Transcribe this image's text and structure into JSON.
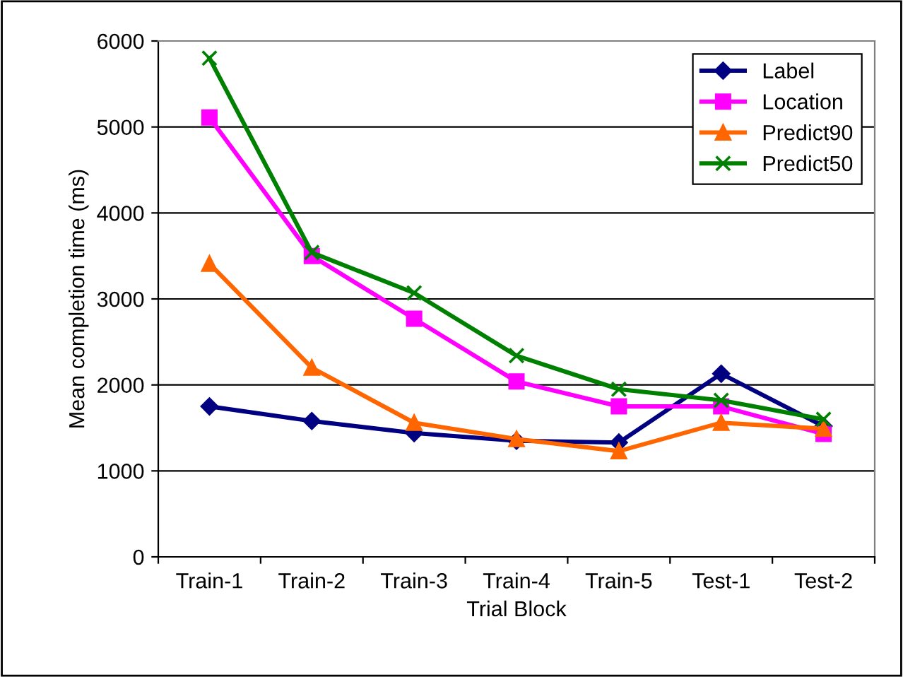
{
  "chart_data": {
    "type": "line",
    "xlabel": "Trial Block",
    "ylabel": "Mean completion time (ms)",
    "categories": [
      "Train-1",
      "Train-2",
      "Train-3",
      "Train-4",
      "Train-5",
      "Test-1",
      "Test-2"
    ],
    "series": [
      {
        "name": "Label",
        "color": "#000080",
        "marker": "diamond",
        "values": [
          1750,
          1580,
          1440,
          1350,
          1330,
          2130,
          1520
        ]
      },
      {
        "name": "Location",
        "color": "#ff00ff",
        "marker": "square",
        "values": [
          5110,
          3500,
          2770,
          2040,
          1750,
          1750,
          1430
        ]
      },
      {
        "name": "Predict90",
        "color": "#ff6600",
        "marker": "triangle",
        "values": [
          3410,
          2200,
          1560,
          1370,
          1230,
          1560,
          1490
        ]
      },
      {
        "name": "Predict50",
        "color": "#008000",
        "marker": "cross",
        "values": [
          5800,
          3540,
          3070,
          2340,
          1950,
          1820,
          1600
        ]
      }
    ],
    "ylim": [
      0,
      6000
    ],
    "yticks": [
      0,
      1000,
      2000,
      3000,
      4000,
      5000,
      6000
    ],
    "grid": "y",
    "legend": "top right",
    "line_style": "solid"
  }
}
